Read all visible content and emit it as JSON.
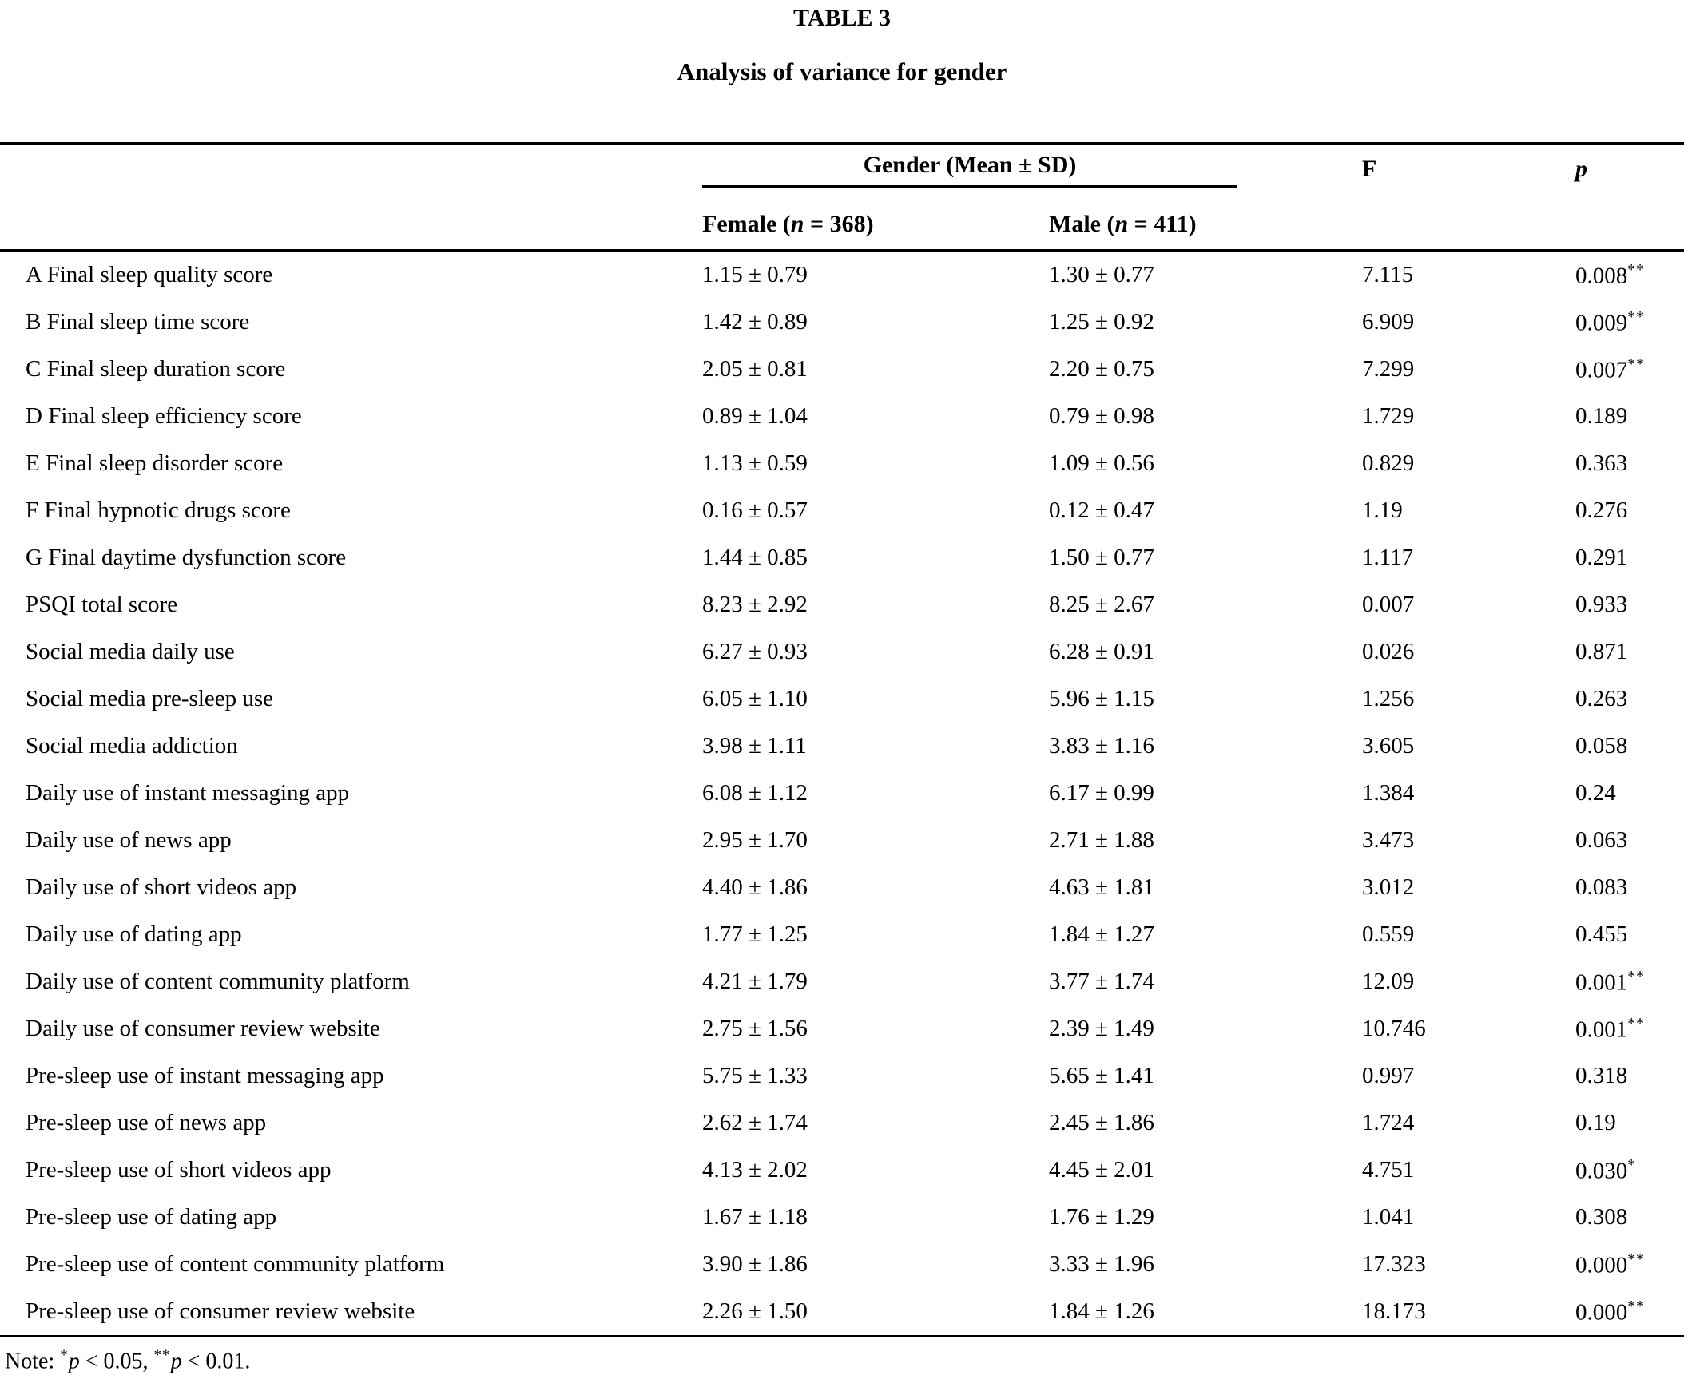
{
  "header": {
    "table_number": "TABLE 3",
    "caption": "Analysis of variance for gender"
  },
  "table": {
    "group_header": "Gender (Mean ± SD)",
    "f_label": "F",
    "p_label": "p",
    "female_header": [
      {
        "t": "Female ("
      },
      {
        "t": "n",
        "i": true
      },
      {
        "t": " = 368)"
      }
    ],
    "male_header": [
      {
        "t": "Male ("
      },
      {
        "t": "n",
        "i": true
      },
      {
        "t": " = 411)"
      }
    ],
    "rows": [
      {
        "label": "A Final sleep quality score",
        "female": "1.15 ± 0.79",
        "male": "1.30 ± 0.77",
        "f": "7.115",
        "p": "0.008",
        "sig": "**"
      },
      {
        "label": "B Final sleep time score",
        "female": "1.42 ± 0.89",
        "male": "1.25 ± 0.92",
        "f": "6.909",
        "p": "0.009",
        "sig": "**"
      },
      {
        "label": "C Final sleep duration score",
        "female": "2.05 ± 0.81",
        "male": "2.20 ± 0.75",
        "f": "7.299",
        "p": "0.007",
        "sig": "**"
      },
      {
        "label": "D Final sleep efficiency score",
        "female": "0.89 ± 1.04",
        "male": "0.79 ± 0.98",
        "f": "1.729",
        "p": "0.189",
        "sig": ""
      },
      {
        "label": "E Final sleep disorder score",
        "female": "1.13 ± 0.59",
        "male": "1.09 ± 0.56",
        "f": "0.829",
        "p": "0.363",
        "sig": ""
      },
      {
        "label": "F Final hypnotic drugs score",
        "female": "0.16 ± 0.57",
        "male": "0.12 ± 0.47",
        "f": "1.19",
        "p": "0.276",
        "sig": ""
      },
      {
        "label": "G Final daytime dysfunction score",
        "female": "1.44 ± 0.85",
        "male": "1.50 ± 0.77",
        "f": "1.117",
        "p": "0.291",
        "sig": ""
      },
      {
        "label": "PSQI total score",
        "female": "8.23 ± 2.92",
        "male": "8.25 ± 2.67",
        "f": "0.007",
        "p": "0.933",
        "sig": ""
      },
      {
        "label": "Social media daily use",
        "female": "6.27 ± 0.93",
        "male": "6.28 ± 0.91",
        "f": "0.026",
        "p": "0.871",
        "sig": ""
      },
      {
        "label": "Social media pre-sleep use",
        "female": "6.05 ± 1.10",
        "male": "5.96 ± 1.15",
        "f": "1.256",
        "p": "0.263",
        "sig": ""
      },
      {
        "label": "Social media addiction",
        "female": "3.98 ± 1.11",
        "male": "3.83 ± 1.16",
        "f": "3.605",
        "p": "0.058",
        "sig": ""
      },
      {
        "label": "Daily use of instant messaging app",
        "female": "6.08 ± 1.12",
        "male": "6.17 ± 0.99",
        "f": "1.384",
        "p": "0.24",
        "sig": ""
      },
      {
        "label": "Daily use of news app",
        "female": "2.95 ± 1.70",
        "male": "2.71 ± 1.88",
        "f": "3.473",
        "p": "0.063",
        "sig": ""
      },
      {
        "label": "Daily use of short videos app",
        "female": "4.40 ± 1.86",
        "male": "4.63 ± 1.81",
        "f": "3.012",
        "p": "0.083",
        "sig": ""
      },
      {
        "label": "Daily use of dating app",
        "female": "1.77 ± 1.25",
        "male": "1.84 ± 1.27",
        "f": "0.559",
        "p": "0.455",
        "sig": ""
      },
      {
        "label": "Daily use of content community platform",
        "female": "4.21 ± 1.79",
        "male": "3.77 ± 1.74",
        "f": "12.09",
        "p": "0.001",
        "sig": "**"
      },
      {
        "label": "Daily use of consumer review website",
        "female": "2.75 ± 1.56",
        "male": "2.39 ± 1.49",
        "f": "10.746",
        "p": "0.001",
        "sig": "**"
      },
      {
        "label": "Pre-sleep use of instant messaging app",
        "female": "5.75 ± 1.33",
        "male": "5.65 ± 1.41",
        "f": "0.997",
        "p": "0.318",
        "sig": ""
      },
      {
        "label": "Pre-sleep use of news app",
        "female": "2.62 ± 1.74",
        "male": "2.45 ± 1.86",
        "f": "1.724",
        "p": "0.19",
        "sig": ""
      },
      {
        "label": "Pre-sleep use of short videos app",
        "female": "4.13 ± 2.02",
        "male": "4.45 ± 2.01",
        "f": "4.751",
        "p": "0.030",
        "sig": "*"
      },
      {
        "label": "Pre-sleep use of dating app",
        "female": "1.67 ± 1.18",
        "male": "1.76 ± 1.29",
        "f": "1.041",
        "p": "0.308",
        "sig": ""
      },
      {
        "label": "Pre-sleep use of content community platform",
        "female": "3.90 ± 1.86",
        "male": "3.33 ± 1.96",
        "f": "17.323",
        "p": "0.000",
        "sig": "**"
      },
      {
        "label": "Pre-sleep use of consumer review website",
        "female": "2.26 ± 1.50",
        "male": "1.84 ± 1.26",
        "f": "18.173",
        "p": "0.000",
        "sig": "**"
      }
    ]
  },
  "note_parts": [
    {
      "t": "Note: "
    },
    {
      "t": "*",
      "sup": true
    },
    {
      "t": "p",
      "i": true
    },
    {
      "t": " < 0.05, "
    },
    {
      "t": "**",
      "sup": true
    },
    {
      "t": "p",
      "i": true
    },
    {
      "t": " < 0.01."
    }
  ]
}
